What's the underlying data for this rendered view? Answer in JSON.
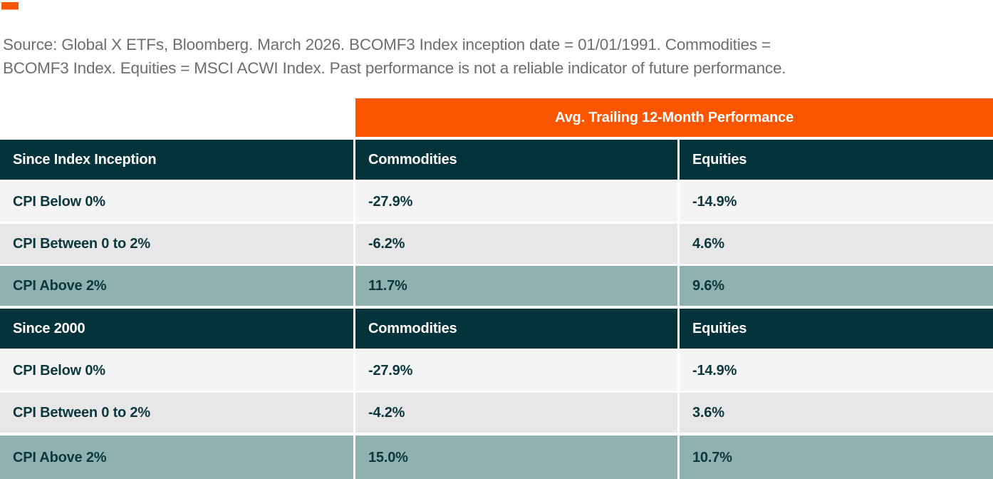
{
  "brand": {
    "accent_color": "#FB5500",
    "dark_teal": "#05333C",
    "highlight_teal": "#8FB2B1"
  },
  "source_note": "Source: Global X ETFs, Bloomberg. March 2026. BCOMF3 Index inception date = 01/01/1991. Commodities =\nBCOMF3 Index. Equities = MSCI ACWI Index. Past performance is not a reliable indicator of future performance.",
  "table": {
    "banner": "Avg. Trailing 12-Month Performance",
    "columns": [
      "Commodities",
      "Equities"
    ],
    "sections": [
      {
        "header": "Since Index Inception",
        "rows": [
          {
            "label": "CPI Below 0%",
            "commodities": "-27.9%",
            "equities": "-14.9%"
          },
          {
            "label": "CPI Between 0 to 2%",
            "commodities": "-6.2%",
            "equities": "4.6%"
          },
          {
            "label": "CPI Above 2%",
            "commodities": "11.7%",
            "equities": "9.6%"
          }
        ]
      },
      {
        "header": "Since 2000",
        "rows": [
          {
            "label": "CPI Below 0%",
            "commodities": "-27.9%",
            "equities": "-14.9%"
          },
          {
            "label": "CPI Between 0 to 2%",
            "commodities": "-4.2%",
            "equities": "3.6%"
          },
          {
            "label": "CPI Above 2%",
            "commodities": "15.0%",
            "equities": "10.7%"
          }
        ]
      }
    ]
  },
  "chart_data": {
    "type": "table",
    "title": "Avg. Trailing 12-Month Performance",
    "units": "percent",
    "columns": [
      "Scenario",
      "Commodities",
      "Equities"
    ],
    "sections": [
      {
        "header": "Since Index Inception",
        "rows": [
          [
            "CPI Below 0%",
            -27.9,
            -14.9
          ],
          [
            "CPI Between 0 to 2%",
            -6.2,
            4.6
          ],
          [
            "CPI Above 2%",
            11.7,
            9.6
          ]
        ]
      },
      {
        "header": "Since 2000",
        "rows": [
          [
            "CPI Below 0%",
            -27.9,
            -14.9
          ],
          [
            "CPI Between 0 to 2%",
            -4.2,
            3.6
          ],
          [
            "CPI Above 2%",
            15.0,
            10.7
          ]
        ]
      }
    ],
    "highlighted_rows": [
      "CPI Above 2%"
    ]
  }
}
